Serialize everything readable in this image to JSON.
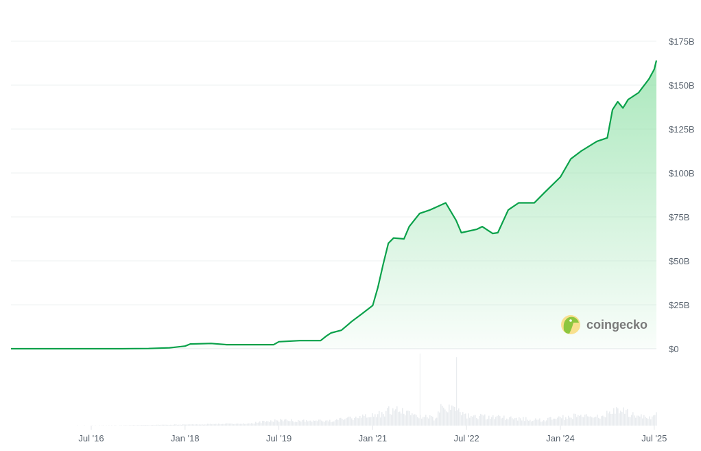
{
  "chart_data": {
    "type": "area",
    "title": "",
    "xlabel": "",
    "ylabel": "",
    "ylim": [
      0,
      175
    ],
    "y_unit": "billion USD",
    "y_ticks": [
      "$0",
      "$25B",
      "$50B",
      "$75B",
      "$100B",
      "$125B",
      "$150B",
      "$175B"
    ],
    "y_tick_values": [
      0,
      25,
      50,
      75,
      100,
      125,
      150,
      175
    ],
    "y_axis_position": "right",
    "x_ticks": [
      "Jul '16",
      "Jan '18",
      "Jul '19",
      "Jan '21",
      "Jul '22",
      "Jan '24",
      "Jul '25"
    ],
    "x_tick_dates": [
      "2016-07",
      "2018-01",
      "2019-07",
      "2021-01",
      "2022-07",
      "2024-01",
      "2025-07"
    ],
    "xlim": [
      "2015-03",
      "2025-08"
    ],
    "grid": true,
    "line_color": "#0aa14a",
    "fill_color": "#8ee0a6",
    "series": [
      {
        "x": [
          "2015-03",
          "2016-01",
          "2017-01",
          "2017-06",
          "2017-10",
          "2018-01",
          "2018-02",
          "2018-06",
          "2018-09",
          "2019-06",
          "2019-07",
          "2019-11",
          "2020-03",
          "2020-04",
          "2020-05",
          "2020-07",
          "2020-09",
          "2020-11",
          "2021-01",
          "2021-02",
          "2021-03",
          "2021-04",
          "2021-05",
          "2021-07",
          "2021-08",
          "2021-10",
          "2021-12",
          "2022-03",
          "2022-05",
          "2022-06",
          "2022-09",
          "2022-10",
          "2022-12",
          "2023-01",
          "2023-03",
          "2023-05",
          "2023-08",
          "2023-10",
          "2024-01",
          "2024-03",
          "2024-05",
          "2024-08",
          "2024-10",
          "2024-11",
          "2024-12",
          "2025-01",
          "2025-02",
          "2025-04",
          "2025-06",
          "2025-07",
          "2025-08"
        ],
        "values": [
          0.0,
          0.0,
          0.01,
          0.1,
          0.5,
          1.5,
          2.7,
          3.0,
          2.3,
          2.3,
          4.0,
          4.6,
          4.6,
          7.0,
          9.0,
          10.5,
          15.6,
          20.0,
          24.6,
          35.0,
          48.0,
          60.0,
          63.0,
          62.5,
          69.5,
          77.0,
          79.0,
          83.0,
          73.0,
          66.0,
          68.0,
          69.5,
          65.6,
          66.0,
          79.0,
          83.0,
          83.0,
          89.0,
          97.7,
          108.0,
          112.5,
          118.0,
          120.0,
          136.0,
          140.6,
          137.0,
          141.8,
          145.7,
          153.5,
          159.0,
          164.0
        ]
      }
    ],
    "volume": {
      "x": [
        "2015-03",
        "2017-01",
        "2018-01",
        "2019-01",
        "2019-07",
        "2020-01",
        "2020-06",
        "2021-01",
        "2021-05",
        "2021-10",
        "2022-01",
        "2022-05",
        "2022-06",
        "2022-11",
        "2023-03",
        "2023-09",
        "2024-01",
        "2024-03",
        "2024-08",
        "2024-12",
        "2025-03",
        "2025-06",
        "2025-08"
      ],
      "values": [
        0,
        0.5,
        2,
        4,
        10,
        8,
        10,
        18,
        30,
        16,
        14,
        95,
        20,
        16,
        14,
        10,
        14,
        18,
        16,
        28,
        20,
        14,
        22
      ]
    },
    "watermark": "coingecko"
  }
}
